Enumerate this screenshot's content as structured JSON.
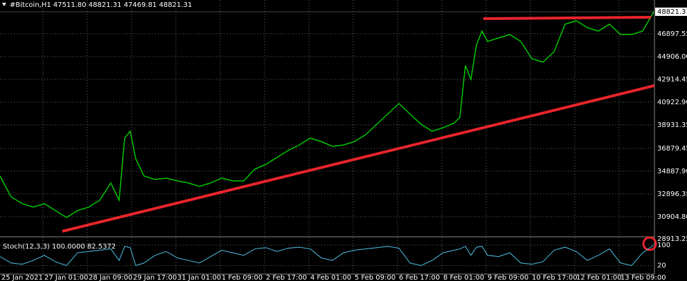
{
  "chart_data": {
    "type": "line",
    "title": "#Bitcoin,H1  47511.80 48821.31 47469.81 48821.31",
    "x": [
      18,
      26,
      34,
      42,
      50,
      58,
      66,
      74,
      82,
      90,
      98,
      104,
      108,
      112,
      116,
      122,
      130,
      138,
      146,
      154,
      162,
      170,
      178,
      186,
      194,
      202,
      210,
      218,
      226,
      234,
      242,
      250,
      258,
      266,
      274,
      282,
      290,
      298,
      306,
      314,
      322,
      330,
      338,
      346,
      350,
      354,
      358,
      362,
      366,
      370,
      378,
      386,
      394,
      402,
      410,
      418,
      426,
      434,
      442,
      450,
      458,
      466,
      474,
      482,
      490
    ],
    "series": [
      {
        "color": "#00c800",
        "values": [
          34458,
          32647,
          32044,
          31742,
          32044,
          31440,
          30837,
          31440,
          31742,
          32345,
          33854,
          32345,
          37777,
          38380,
          35966,
          34458,
          34156,
          34277,
          34035,
          33854,
          33552,
          33854,
          34277,
          34035,
          34035,
          35061,
          35484,
          36087,
          36691,
          37173,
          37777,
          37475,
          37053,
          37173,
          37475,
          38079,
          38984,
          39889,
          40794,
          39889,
          38984,
          38380,
          38682,
          39105,
          39587,
          44114,
          42907,
          45924,
          47131,
          46226,
          46528,
          46829,
          46226,
          44717,
          44415,
          45321,
          47735,
          48036,
          47433,
          47131,
          47735,
          46829,
          46829,
          47131,
          48821.31
        ]
      }
    ],
    "last_price": 48821.31,
    "xlim": [
      18,
      490
    ],
    "ylim": [
      29328,
      49726
    ],
    "xticks": [
      {
        "value": 18,
        "label": "25 Jan 2021"
      },
      {
        "value": 49,
        "label": "27 Jan 01:00"
      },
      {
        "value": 81,
        "label": "28 Jan 09:00"
      },
      {
        "value": 113,
        "label": "29 Jan 17:00"
      },
      {
        "value": 145,
        "label": "31 Jan 01:00"
      },
      {
        "value": 177,
        "label": "1 Feb 09:00"
      },
      {
        "value": 209,
        "label": "2 Feb 17:00"
      },
      {
        "value": 241,
        "label": "4 Feb 01:00"
      },
      {
        "value": 273,
        "label": "5 Feb 09:00"
      },
      {
        "value": 305,
        "label": "6 Feb 17:00"
      },
      {
        "value": 337,
        "label": "8 Feb 01:00"
      },
      {
        "value": 369,
        "label": "9 Feb 09:00"
      },
      {
        "value": 401,
        "label": "10 Feb 17:00"
      },
      {
        "value": 433,
        "label": "12 Feb 01:00"
      },
      {
        "value": 465,
        "label": "13 Feb 09:00"
      }
    ],
    "yticks": [
      46897.55,
      {
        "value": 44906,
        "label": "44906.00"
      },
      42914.45,
      {
        "value": 40922.9,
        "label": "40922.90"
      },
      38931.35,
      36879.45,
      {
        "value": 34887.9,
        "label": "34887.90"
      },
      32896.35,
      {
        "value": 30904.8,
        "label": "30904.80"
      },
      28913.25
    ],
    "grid": true,
    "trendlines": [
      {
        "color": "#e8242c",
        "x": [
          63,
          490.5
        ],
        "y": [
          29630,
          42364
        ]
      },
      {
        "color": "#e8242c",
        "x": [
          367,
          488
        ],
        "y": [
          48218,
          48338
        ]
      }
    ],
    "indicator": {
      "label": "Stoch(12,3,3) 100.0000 82.5372",
      "color": "#4fc3e8",
      "values": [
        55,
        30,
        25,
        40,
        60,
        35,
        20,
        70,
        75,
        80,
        85,
        40,
        95,
        90,
        20,
        30,
        60,
        75,
        50,
        40,
        30,
        55,
        80,
        70,
        60,
        85,
        90,
        75,
        88,
        92,
        85,
        50,
        40,
        70,
        80,
        85,
        90,
        95,
        88,
        30,
        20,
        40,
        70,
        80,
        85,
        95,
        60,
        92,
        95,
        60,
        55,
        70,
        30,
        25,
        35,
        80,
        92,
        75,
        40,
        60,
        85,
        30,
        20,
        70,
        100
      ],
      "ylim": [
        0,
        100
      ],
      "yticks": [
        100,
        20
      ]
    }
  }
}
